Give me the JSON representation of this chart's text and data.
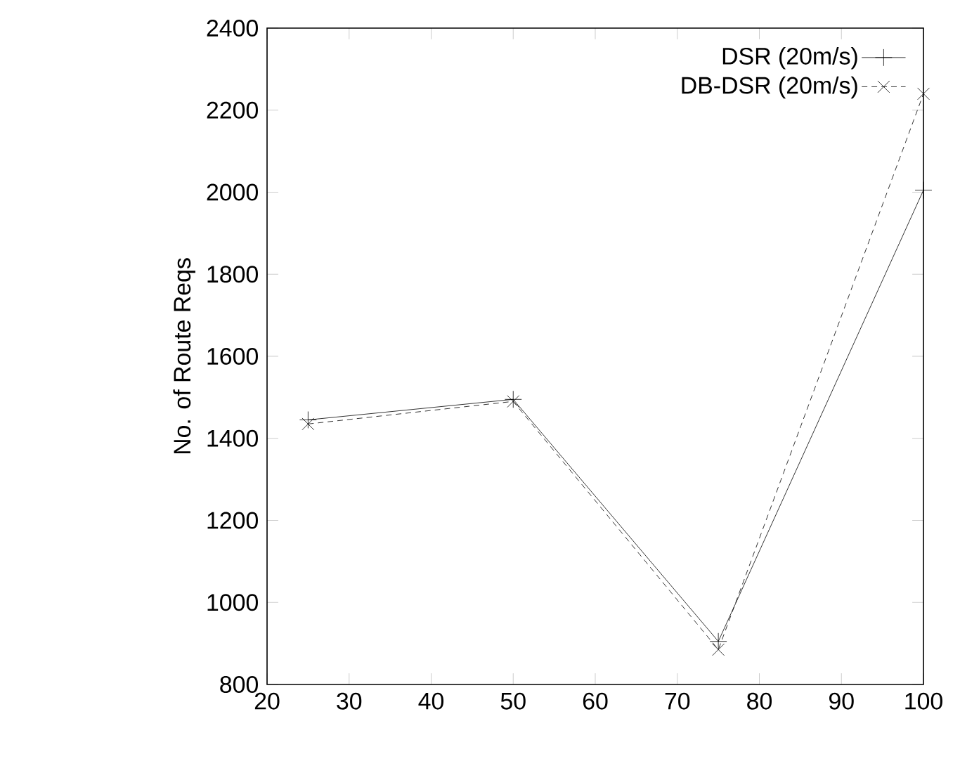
{
  "chart_data": {
    "type": "line",
    "ylabel": "No. of Route Reqs",
    "x": [
      25,
      50,
      75,
      100
    ],
    "series": [
      {
        "name": "DSR (20m/s)",
        "color": "#000000",
        "values": [
          1445,
          1495,
          905,
          2005
        ],
        "marker": "plus",
        "line_style": "solid"
      },
      {
        "name": "DB-DSR (20m/s)",
        "color": "#000000",
        "values": [
          1435,
          1490,
          885,
          2240
        ],
        "marker": "cross",
        "line_style": "dashed"
      }
    ],
    "xlim": [
      20,
      100
    ],
    "xticks": [
      20,
      30,
      40,
      50,
      60,
      70,
      80,
      90,
      100
    ],
    "ylim": [
      800,
      2400
    ],
    "yticks": [
      800,
      1000,
      1200,
      1400,
      1600,
      1800,
      2000,
      2200,
      2400
    ],
    "grid": false,
    "legend": "top right"
  }
}
